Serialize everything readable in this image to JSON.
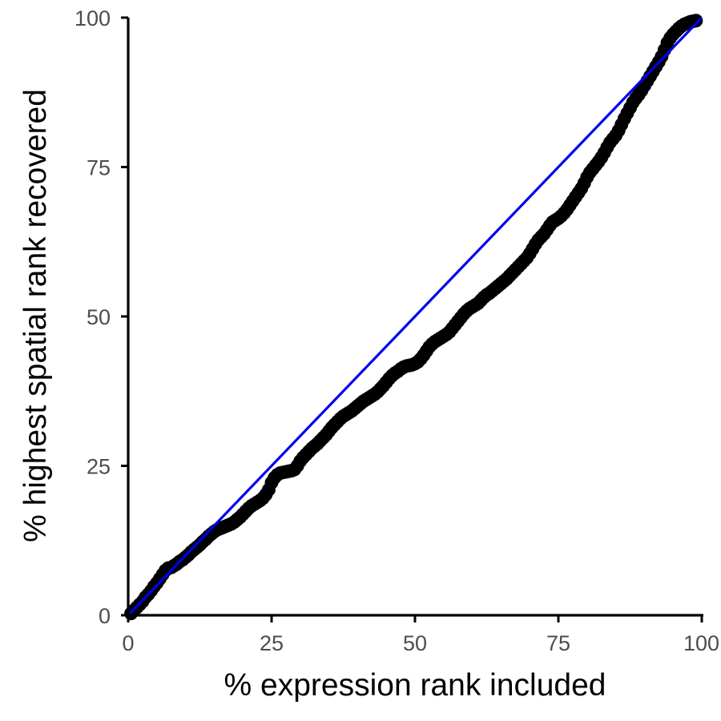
{
  "chart_data": {
    "type": "scatter",
    "title": "",
    "xlabel": "% expression rank included",
    "ylabel": "% highest spatial rank recovered",
    "xlim": [
      0,
      100
    ],
    "ylim": [
      0,
      100
    ],
    "x_ticks": [
      "0",
      "25",
      "50",
      "75",
      "100"
    ],
    "y_ticks": [
      "0",
      "25",
      "50",
      "75",
      "100"
    ],
    "grid": false,
    "legend": "none",
    "reference_line": {
      "from": [
        0,
        0
      ],
      "to": [
        100,
        100
      ],
      "color": "#0000ee"
    },
    "point_color": "#000000",
    "points": [
      [
        0.5,
        0.3
      ],
      [
        1,
        0.8
      ],
      [
        1.5,
        1.3
      ],
      [
        2,
        1.8
      ],
      [
        2.5,
        2.3
      ],
      [
        3,
        3.0
      ],
      [
        3.5,
        3.5
      ],
      [
        4,
        4.1
      ],
      [
        4.5,
        4.8
      ],
      [
        5,
        5.4
      ],
      [
        5.5,
        6.1
      ],
      [
        6,
        6.8
      ],
      [
        6.5,
        7.5
      ],
      [
        7,
        7.9
      ],
      [
        7.5,
        8.0
      ],
      [
        8,
        8.3
      ],
      [
        8.5,
        8.6
      ],
      [
        9,
        9.0
      ],
      [
        9.5,
        9.3
      ],
      [
        10,
        9.7
      ],
      [
        10.5,
        10.1
      ],
      [
        11,
        10.6
      ],
      [
        11.5,
        11.0
      ],
      [
        12,
        11.4
      ],
      [
        12.5,
        11.8
      ],
      [
        13,
        12.3
      ],
      [
        13.5,
        12.7
      ],
      [
        14,
        13.2
      ],
      [
        14.5,
        13.6
      ],
      [
        15,
        14.0
      ],
      [
        15.5,
        14.3
      ],
      [
        16,
        14.5
      ],
      [
        16.5,
        14.7
      ],
      [
        17,
        14.9
      ],
      [
        17.5,
        15.1
      ],
      [
        18,
        15.3
      ],
      [
        18.5,
        15.6
      ],
      [
        19,
        16.0
      ],
      [
        19.5,
        16.4
      ],
      [
        20,
        16.9
      ],
      [
        20.5,
        17.4
      ],
      [
        21,
        17.9
      ],
      [
        21.5,
        18.3
      ],
      [
        22,
        18.6
      ],
      [
        22.5,
        18.9
      ],
      [
        23,
        19.2
      ],
      [
        23.5,
        19.6
      ],
      [
        24,
        20.2
      ],
      [
        24.5,
        21.0
      ],
      [
        25,
        22.2
      ],
      [
        25.5,
        23.0
      ],
      [
        26,
        23.5
      ],
      [
        26.5,
        23.8
      ],
      [
        27,
        23.9
      ],
      [
        27.5,
        24.0
      ],
      [
        28,
        24.1
      ],
      [
        28.5,
        24.2
      ],
      [
        29,
        24.4
      ],
      [
        29.5,
        25.0
      ],
      [
        30,
        25.8
      ],
      [
        30.5,
        26.4
      ],
      [
        31,
        26.9
      ],
      [
        31.5,
        27.4
      ],
      [
        32,
        27.9
      ],
      [
        32.5,
        28.3
      ],
      [
        33,
        28.7
      ],
      [
        33.5,
        29.2
      ],
      [
        34,
        29.7
      ],
      [
        34.5,
        30.2
      ],
      [
        35,
        30.8
      ],
      [
        35.5,
        31.4
      ],
      [
        36,
        31.9
      ],
      [
        36.5,
        32.4
      ],
      [
        37,
        32.9
      ],
      [
        37.5,
        33.3
      ],
      [
        38,
        33.6
      ],
      [
        38.5,
        33.9
      ],
      [
        39,
        34.2
      ],
      [
        39.5,
        34.6
      ],
      [
        40,
        35.0
      ],
      [
        40.5,
        35.4
      ],
      [
        41,
        35.8
      ],
      [
        41.5,
        36.1
      ],
      [
        42,
        36.4
      ],
      [
        42.5,
        36.7
      ],
      [
        43,
        37.0
      ],
      [
        43.5,
        37.4
      ],
      [
        44,
        37.9
      ],
      [
        44.5,
        38.4
      ],
      [
        45,
        39.0
      ],
      [
        45.5,
        39.6
      ],
      [
        46,
        40.1
      ],
      [
        46.5,
        40.5
      ],
      [
        47,
        40.8
      ],
      [
        47.5,
        41.2
      ],
      [
        48,
        41.5
      ],
      [
        48.5,
        41.7
      ],
      [
        49,
        41.8
      ],
      [
        49.5,
        41.9
      ],
      [
        50,
        42.1
      ],
      [
        50.5,
        42.4
      ],
      [
        51,
        42.9
      ],
      [
        51.5,
        43.5
      ],
      [
        52,
        44.2
      ],
      [
        52.5,
        44.9
      ],
      [
        53,
        45.4
      ],
      [
        53.5,
        45.8
      ],
      [
        54,
        46.1
      ],
      [
        54.5,
        46.4
      ],
      [
        55,
        46.7
      ],
      [
        55.5,
        47.0
      ],
      [
        56,
        47.4
      ],
      [
        56.5,
        48.0
      ],
      [
        57,
        48.6
      ],
      [
        57.5,
        49.2
      ],
      [
        58,
        49.8
      ],
      [
        58.5,
        50.4
      ],
      [
        59,
        50.9
      ],
      [
        59.5,
        51.3
      ],
      [
        60,
        51.6
      ],
      [
        60.5,
        51.9
      ],
      [
        61,
        52.2
      ],
      [
        61.5,
        52.7
      ],
      [
        62,
        53.2
      ],
      [
        62.5,
        53.6
      ],
      [
        63,
        53.9
      ],
      [
        63.5,
        54.3
      ],
      [
        64,
        54.7
      ],
      [
        64.5,
        55.1
      ],
      [
        65,
        55.5
      ],
      [
        65.5,
        55.9
      ],
      [
        66,
        56.3
      ],
      [
        66.5,
        56.8
      ],
      [
        67,
        57.3
      ],
      [
        67.5,
        57.8
      ],
      [
        68,
        58.3
      ],
      [
        68.5,
        58.8
      ],
      [
        69,
        59.3
      ],
      [
        69.5,
        59.8
      ],
      [
        70,
        60.5
      ],
      [
        70.5,
        61.3
      ],
      [
        71,
        62.1
      ],
      [
        71.5,
        62.8
      ],
      [
        72,
        63.3
      ],
      [
        72.5,
        63.8
      ],
      [
        73,
        64.5
      ],
      [
        73.5,
        65.2
      ],
      [
        74,
        65.8
      ],
      [
        74.5,
        66.1
      ],
      [
        75,
        66.4
      ],
      [
        75.5,
        66.8
      ],
      [
        76,
        67.3
      ],
      [
        76.5,
        67.9
      ],
      [
        77,
        68.6
      ],
      [
        77.5,
        69.3
      ],
      [
        78,
        70.0
      ],
      [
        78.5,
        70.7
      ],
      [
        79,
        71.4
      ],
      [
        79.5,
        72.3
      ],
      [
        80,
        73.3
      ],
      [
        80.5,
        74.1
      ],
      [
        81,
        74.7
      ],
      [
        81.5,
        75.3
      ],
      [
        82,
        75.9
      ],
      [
        82.5,
        76.6
      ],
      [
        83,
        77.4
      ],
      [
        83.5,
        78.3
      ],
      [
        84,
        79.1
      ],
      [
        84.5,
        79.7
      ],
      [
        85,
        80.3
      ],
      [
        85.5,
        81.1
      ],
      [
        86,
        82.1
      ],
      [
        86.5,
        83.1
      ],
      [
        87,
        84.0
      ],
      [
        87.5,
        84.9
      ],
      [
        88,
        85.8
      ],
      [
        88.5,
        86.5
      ],
      [
        89,
        87.1
      ],
      [
        89.5,
        87.8
      ],
      [
        90,
        88.6
      ],
      [
        90.5,
        89.4
      ],
      [
        91,
        90.2
      ],
      [
        91.5,
        91.0
      ],
      [
        92,
        91.8
      ],
      [
        92.5,
        92.6
      ],
      [
        93,
        93.5
      ],
      [
        93.5,
        94.6
      ],
      [
        94,
        95.8
      ],
      [
        94.5,
        96.6
      ],
      [
        95,
        97.2
      ],
      [
        95.5,
        97.7
      ],
      [
        96,
        98.2
      ],
      [
        96.5,
        98.6
      ],
      [
        97,
        98.9
      ],
      [
        97.5,
        99.1
      ],
      [
        98,
        99.3
      ],
      [
        98.5,
        99.4
      ],
      [
        99,
        99.5
      ]
    ]
  }
}
